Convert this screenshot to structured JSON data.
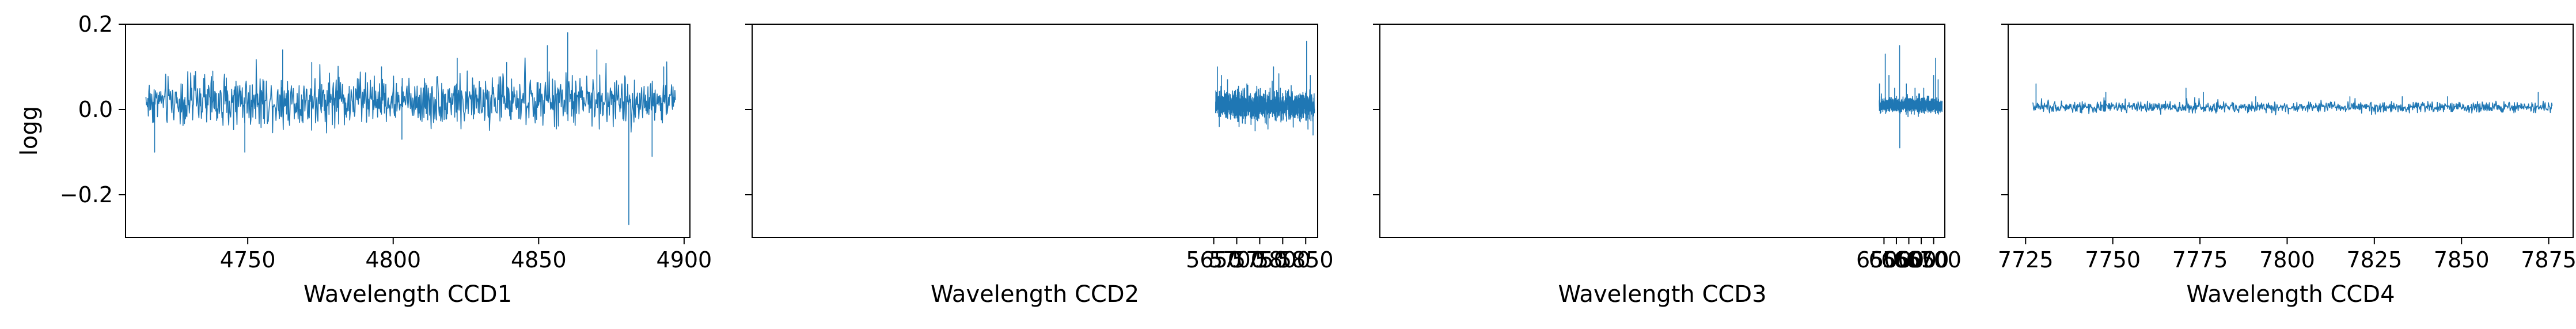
{
  "figure": {
    "line_color": "#1f77b4",
    "axis_color": "#000000",
    "shared_y": {
      "label": "logg",
      "ylim": [
        -0.3,
        0.2
      ],
      "ticks": [
        -0.2,
        0.0,
        0.2
      ],
      "tick_labels": [
        "−0.2",
        "0.0",
        "0.2"
      ]
    }
  },
  "chart_data": [
    {
      "type": "line",
      "xlabel": "Wavelength CCD1",
      "ylabel": "logg",
      "xlim": [
        4708,
        4902
      ],
      "ylim": [
        -0.3,
        0.2
      ],
      "x_ticks": [
        4750,
        4800,
        4850,
        4900
      ],
      "x_tick_labels": [
        "4750",
        "4800",
        "4850",
        "4900"
      ],
      "grid": false,
      "series": [
        {
          "x_range": [
            4715,
            4897
          ],
          "baseline": 0.02,
          "noise": 0.028,
          "spikes": [
            {
              "x": 4718,
              "y": -0.1
            },
            {
              "x": 4738,
              "y": 0.09
            },
            {
              "x": 4749,
              "y": -0.1
            },
            {
              "x": 4762,
              "y": 0.14
            },
            {
              "x": 4772,
              "y": 0.11
            },
            {
              "x": 4796,
              "y": 0.1
            },
            {
              "x": 4803,
              "y": -0.07
            },
            {
              "x": 4822,
              "y": 0.12
            },
            {
              "x": 4839,
              "y": 0.11
            },
            {
              "x": 4853,
              "y": 0.15
            },
            {
              "x": 4860,
              "y": 0.18
            },
            {
              "x": 4870,
              "y": 0.14
            },
            {
              "x": 4881,
              "y": -0.27
            },
            {
              "x": 4889,
              "y": -0.11
            },
            {
              "x": 4893,
              "y": 0.1
            }
          ]
        }
      ]
    },
    {
      "type": "line",
      "xlabel": "Wavelength CCD2",
      "ylabel": "",
      "xlim": [
        4646,
        5876
      ],
      "ylim": [
        -0.3,
        0.2
      ],
      "x_ticks": [
        5650,
        5700,
        5750,
        5800,
        5850
      ],
      "x_tick_labels": [
        "5650",
        "5700",
        "5750",
        "5800",
        "5850"
      ],
      "grid": false,
      "series": [
        {
          "x_range": [
            5654,
            5869
          ],
          "baseline": 0.01,
          "noise": 0.016,
          "spikes": [
            {
              "x": 5658,
              "y": 0.1
            },
            {
              "x": 5662,
              "y": -0.04
            },
            {
              "x": 5667,
              "y": 0.08
            },
            {
              "x": 5680,
              "y": 0.07
            },
            {
              "x": 5705,
              "y": -0.04
            },
            {
              "x": 5722,
              "y": 0.06
            },
            {
              "x": 5740,
              "y": -0.05
            },
            {
              "x": 5780,
              "y": 0.1
            },
            {
              "x": 5795,
              "y": 0.05
            },
            {
              "x": 5852,
              "y": 0.16
            },
            {
              "x": 5860,
              "y": 0.08
            },
            {
              "x": 5866,
              "y": -0.06
            }
          ]
        }
      ]
    },
    {
      "type": "line",
      "xlabel": "Wavelength CCD3",
      "ylabel": "",
      "xlim": [
        4469,
        6745
      ],
      "ylim": [
        -0.3,
        0.2
      ],
      "x_ticks": [
        6500,
        6550,
        6600,
        6650,
        6700
      ],
      "x_tick_labels": [
        "6500",
        "6550",
        "6600",
        "6650",
        "6700"
      ],
      "grid": false,
      "series": [
        {
          "x_range": [
            6481,
            6734
          ],
          "baseline": 0.01,
          "noise": 0.008,
          "spikes": [
            {
              "x": 6482,
              "y": 0.06
            },
            {
              "x": 6505,
              "y": 0.13
            },
            {
              "x": 6520,
              "y": 0.08
            },
            {
              "x": 6543,
              "y": 0.05
            },
            {
              "x": 6562.8,
              "y": 0.15
            },
            {
              "x": 6563.5,
              "y": -0.09
            },
            {
              "x": 6590,
              "y": 0.06
            },
            {
              "x": 6625,
              "y": 0.05
            },
            {
              "x": 6660,
              "y": 0.05
            },
            {
              "x": 6700,
              "y": 0.08
            },
            {
              "x": 6708,
              "y": 0.12
            },
            {
              "x": 6718,
              "y": 0.07
            }
          ]
        }
      ]
    },
    {
      "type": "line",
      "xlabel": "Wavelength CCD4",
      "ylabel": "",
      "xlim": [
        7720,
        7882
      ],
      "ylim": [
        -0.3,
        0.2
      ],
      "x_ticks": [
        7725,
        7750,
        7775,
        7800,
        7825,
        7850,
        7875
      ],
      "x_tick_labels": [
        "7725",
        "7750",
        "7775",
        "7800",
        "7825",
        "7850",
        "7875"
      ],
      "grid": false,
      "series": [
        {
          "x_range": [
            7727,
            7876
          ],
          "baseline": 0.005,
          "noise": 0.006,
          "spikes": [
            {
              "x": 7728,
              "y": 0.06
            },
            {
              "x": 7748,
              "y": 0.04
            },
            {
              "x": 7771,
              "y": 0.05
            },
            {
              "x": 7776,
              "y": 0.04
            },
            {
              "x": 7791,
              "y": 0.03
            },
            {
              "x": 7818,
              "y": 0.03
            },
            {
              "x": 7833,
              "y": 0.03
            },
            {
              "x": 7846,
              "y": 0.03
            },
            {
              "x": 7872,
              "y": 0.04
            }
          ]
        }
      ]
    }
  ]
}
